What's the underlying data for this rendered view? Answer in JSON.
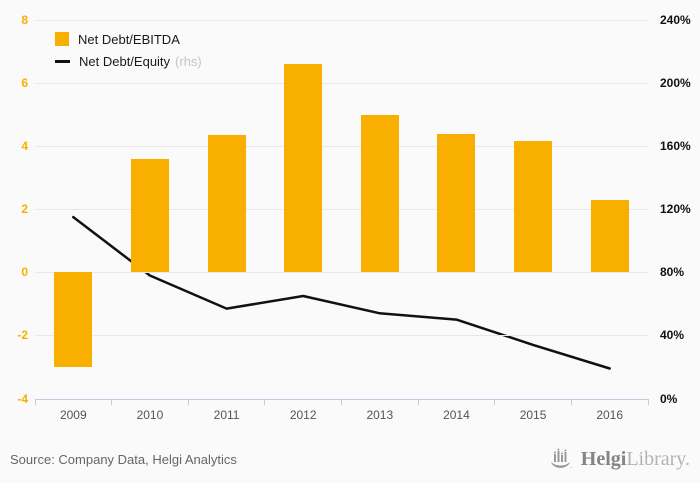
{
  "chart_data": {
    "type": "bar",
    "categories": [
      "2009",
      "2010",
      "2011",
      "2012",
      "2013",
      "2014",
      "2015",
      "2016"
    ],
    "series": [
      {
        "name": "Net Debt/EBITDA",
        "type": "bar",
        "axis": "left",
        "color": "#f9af00",
        "values": [
          -3.0,
          3.6,
          4.35,
          6.6,
          5.0,
          4.4,
          4.15,
          2.3
        ]
      },
      {
        "name": "Net Debt/Equity",
        "axis_note": "(rhs)",
        "type": "line",
        "axis": "right",
        "color": "#111111",
        "unit": "%",
        "values": [
          115,
          78,
          57,
          65,
          54,
          50,
          34,
          19
        ]
      }
    ],
    "left_axis": {
      "min": -4,
      "max": 8,
      "ticks": [
        8,
        6,
        4,
        2,
        0,
        -2,
        -4
      ]
    },
    "right_axis": {
      "min": 0,
      "max": 240,
      "ticks": [
        "240%",
        "200%",
        "160%",
        "120%",
        "80%",
        "40%",
        "0%"
      ]
    },
    "grid": true,
    "legend_position": "top-left",
    "title": "",
    "xlabel": "",
    "ylabel": ""
  },
  "footer": {
    "source": "Source: Company Data, Helgi Analytics",
    "logo": {
      "part1": "Helgi",
      "part2": "Library."
    }
  },
  "colors": {
    "bar": "#f9af00",
    "line": "#111111",
    "gridline": "#e8e8e8",
    "axis_line": "#c3cbe2",
    "background": "#fafafa"
  }
}
